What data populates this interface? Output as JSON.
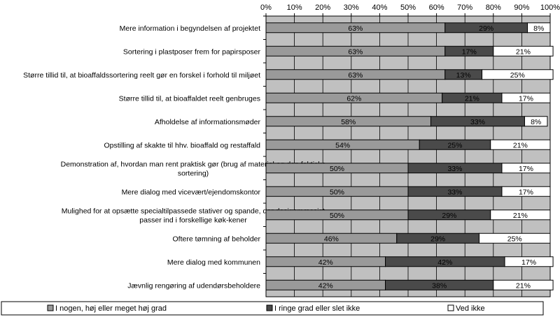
{
  "chart_data": {
    "type": "bar",
    "orientation": "horizontal",
    "stacked": true,
    "title": "",
    "xlabel": "",
    "ylabel": "",
    "xlim": [
      0,
      100
    ],
    "x_ticks": [
      "0%",
      "10%",
      "20%",
      "30%",
      "40%",
      "50%",
      "60%",
      "70%",
      "80%",
      "90%",
      "100%"
    ],
    "x_axis_position": "top",
    "grid": true,
    "legend_position": "bottom",
    "categories": [
      [
        "Mere information i begyndelsen af projektet"
      ],
      [
        "Sortering i plastposer frem for papirsposer"
      ],
      [
        "Større tillid til, at bioaffaldssortering reelt gør en forskel i forhold til miljøet"
      ],
      [
        "Større tillid til, at bioaffaldet reelt genbruges"
      ],
      [
        "Afholdelse af informationsmøder"
      ],
      [
        "Opstilling af skakte til hhv. bioaffald og restaffald"
      ],
      [
        "Demonstration af, hvordan man rent praktisk gør (brug af materiel og den faktiske",
        "sortering)"
      ],
      [
        "Mere dialog med vicevært/ejendomskontor"
      ],
      [
        "Mulighed for at opsætte specialtilpassede stativer og spande, der designmæssigt",
        "passer ind i forskellige køk-kener"
      ],
      [
        "Oftere tømning af beholder"
      ],
      [
        "Mere dialog med kommunen"
      ],
      [
        "Jævnlig rengøring af udendørsbeholdere"
      ]
    ],
    "series": [
      {
        "name": "I nogen, høj eller meget høj grad",
        "color": "#9a9a9a",
        "values": [
          63,
          63,
          63,
          62,
          58,
          54,
          50,
          50,
          50,
          46,
          42,
          42
        ],
        "labels": [
          "63%",
          "63%",
          "63%",
          "62%",
          "58%",
          "54%",
          "50%",
          "50%",
          "50%",
          "46%",
          "42%",
          "42%"
        ]
      },
      {
        "name": "I ringe grad eller slet ikke",
        "color": "#4a4a4a",
        "values": [
          29,
          17,
          13,
          21,
          33,
          25,
          33,
          33,
          29,
          29,
          42,
          38
        ],
        "labels": [
          "29%",
          "17%",
          "13%",
          "21%",
          "33%",
          "25%",
          "33%",
          "33%",
          "29%",
          "29%",
          "42%",
          "38%"
        ]
      },
      {
        "name": "Ved ikke",
        "color": "#ffffff",
        "values": [
          8,
          21,
          25,
          17,
          8,
          21,
          17,
          17,
          21,
          25,
          17,
          21
        ],
        "labels": [
          "8%",
          "21%",
          "25%",
          "17%",
          "8%",
          "21%",
          "17%",
          "17%",
          "21%",
          "25%",
          "17%",
          "21%"
        ]
      }
    ],
    "plot_background": "#c0c0c0"
  }
}
